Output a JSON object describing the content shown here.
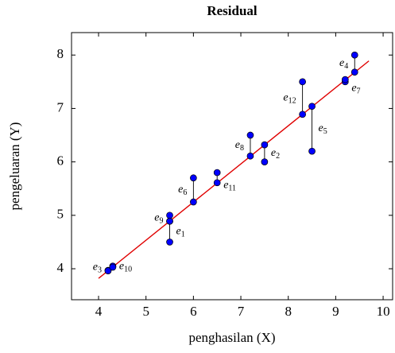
{
  "chart_data": {
    "type": "scatter",
    "title": "Residual",
    "x_label": "penghasilan (X)",
    "y_label": "pengeluaran (Y)",
    "xlim": [
      3.43,
      10.2
    ],
    "ylim": [
      3.42,
      8.42
    ],
    "xticks": [
      4,
      5,
      6,
      7,
      8,
      9,
      10
    ],
    "yticks": [
      4,
      5,
      6,
      7,
      8
    ],
    "point_color": "#0000ff",
    "x": [
      5.5,
      7.5,
      4.2,
      9.4,
      8.5,
      6.0,
      9.2,
      7.2,
      5.5,
      4.3,
      6.5,
      8.3
    ],
    "observed": [
      4.5,
      6.0,
      3.97,
      8.0,
      6.2,
      5.7,
      7.5,
      6.5,
      5.0,
      4.05,
      5.8,
      7.5
    ],
    "fitted": [
      4.89,
      6.32,
      3.96,
      7.68,
      7.04,
      5.25,
      7.54,
      6.11,
      4.89,
      4.03,
      5.61,
      6.89
    ],
    "residual_labels": [
      {
        "letter": "e",
        "sub": "1"
      },
      {
        "letter": "e",
        "sub": "2"
      },
      {
        "letter": "e",
        "sub": "3"
      },
      {
        "letter": "e",
        "sub": "4"
      },
      {
        "letter": "e",
        "sub": "5"
      },
      {
        "letter": "e",
        "sub": "6"
      },
      {
        "letter": "e",
        "sub": "7"
      },
      {
        "letter": "e",
        "sub": "8"
      },
      {
        "letter": "e",
        "sub": "9"
      },
      {
        "letter": "e",
        "sub": "10"
      },
      {
        "letter": "e",
        "sub": "11"
      },
      {
        "letter": "e",
        "sub": "12"
      }
    ],
    "line": {
      "color": "#e00000",
      "x": [
        4.0,
        9.7
      ],
      "y": [
        3.82,
        7.89
      ]
    }
  }
}
